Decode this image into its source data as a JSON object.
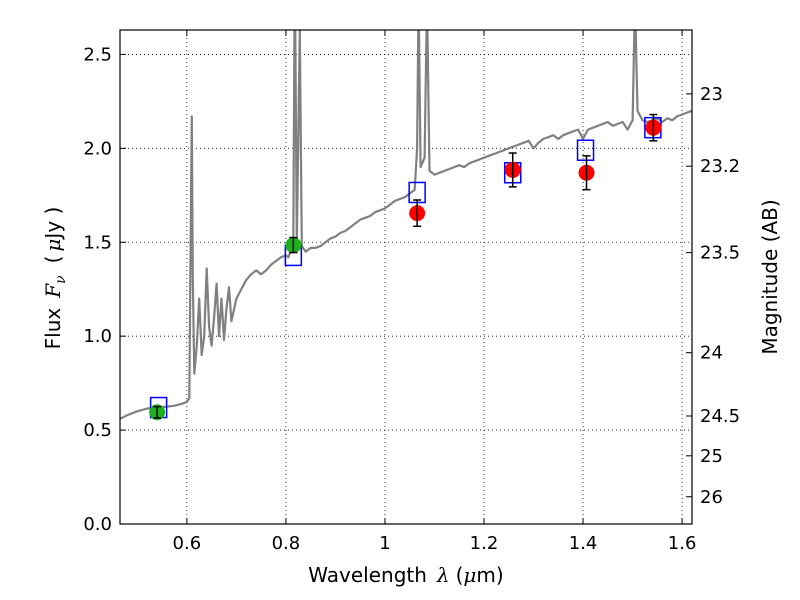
{
  "chart_data": {
    "type": "scatter",
    "xlabel_text": "Wavelength",
    "xlabel_math": "λ",
    "xlabel_unit_open": "(",
    "xlabel_unit_mu": "μ",
    "xlabel_unit_rest": "m)",
    "ylabel_text": "Flux",
    "ylabel_math": "F",
    "ylabel_sub": "ν",
    "ylabel_unit_open": "(",
    "ylabel_unit_mu": "μ",
    "ylabel_unit_rest": "Jy )",
    "ylabel_right": "Magnitude (AB)",
    "xlim": [
      0.465,
      1.62
    ],
    "ylim": [
      0.0,
      2.63
    ],
    "xticks": [
      0.6,
      0.8,
      1.0,
      1.2,
      1.4,
      1.6
    ],
    "xtick_labels": [
      "0.6",
      "0.8",
      "1",
      "1.2",
      "1.4",
      "1.6"
    ],
    "yticks": [
      0.0,
      0.5,
      1.0,
      1.5,
      2.0,
      2.5
    ],
    "ytick_labels": [
      "0.0",
      "0.5",
      "1.0",
      "1.5",
      "2.0",
      "2.5"
    ],
    "right_ticks": [
      {
        "label": "23",
        "flux": 2.29
      },
      {
        "label": "23.2",
        "flux": 1.905
      },
      {
        "label": "23.5",
        "flux": 1.445
      },
      {
        "label": "24",
        "flux": 0.912
      },
      {
        "label": "24.5",
        "flux": 0.575
      },
      {
        "label": "25",
        "flux": 0.363
      },
      {
        "label": "26",
        "flux": 0.145
      }
    ],
    "grid": true,
    "colors": {
      "spectrum": "#808080",
      "green": "#1fb01f",
      "red": "#ff0000",
      "model": "#0000ff",
      "errorbar": "#000000"
    },
    "spectrum": [
      [
        0.465,
        0.56
      ],
      [
        0.48,
        0.58
      ],
      [
        0.5,
        0.6
      ],
      [
        0.52,
        0.615
      ],
      [
        0.54,
        0.62
      ],
      [
        0.56,
        0.625
      ],
      [
        0.575,
        0.63
      ],
      [
        0.59,
        0.64
      ],
      [
        0.6,
        0.65
      ],
      [
        0.605,
        0.67
      ],
      [
        0.608,
        1.6
      ],
      [
        0.61,
        2.17
      ],
      [
        0.612,
        1.3
      ],
      [
        0.615,
        0.8
      ],
      [
        0.62,
        0.95
      ],
      [
        0.625,
        1.2
      ],
      [
        0.63,
        0.9
      ],
      [
        0.635,
        1.0
      ],
      [
        0.64,
        1.36
      ],
      [
        0.645,
        1.05
      ],
      [
        0.65,
        0.95
      ],
      [
        0.655,
        1.1
      ],
      [
        0.66,
        1.28
      ],
      [
        0.665,
        1.0
      ],
      [
        0.67,
        1.2
      ],
      [
        0.675,
        0.98
      ],
      [
        0.68,
        1.15
      ],
      [
        0.685,
        1.26
      ],
      [
        0.69,
        1.08
      ],
      [
        0.7,
        1.2
      ],
      [
        0.71,
        1.25
      ],
      [
        0.72,
        1.3
      ],
      [
        0.73,
        1.33
      ],
      [
        0.74,
        1.35
      ],
      [
        0.75,
        1.33
      ],
      [
        0.76,
        1.35
      ],
      [
        0.77,
        1.38
      ],
      [
        0.78,
        1.4
      ],
      [
        0.79,
        1.42
      ],
      [
        0.8,
        1.43
      ],
      [
        0.805,
        1.42
      ],
      [
        0.81,
        1.46
      ],
      [
        0.815,
        1.5
      ],
      [
        0.818,
        3.0
      ],
      [
        0.822,
        1.5
      ],
      [
        0.828,
        2.63
      ],
      [
        0.832,
        1.48
      ],
      [
        0.84,
        1.45
      ],
      [
        0.85,
        1.47
      ],
      [
        0.86,
        1.47
      ],
      [
        0.87,
        1.48
      ],
      [
        0.88,
        1.5
      ],
      [
        0.89,
        1.52
      ],
      [
        0.9,
        1.53
      ],
      [
        0.91,
        1.55
      ],
      [
        0.92,
        1.56
      ],
      [
        0.93,
        1.58
      ],
      [
        0.94,
        1.6
      ],
      [
        0.95,
        1.62
      ],
      [
        0.96,
        1.63
      ],
      [
        0.97,
        1.64
      ],
      [
        0.98,
        1.66
      ],
      [
        0.99,
        1.67
      ],
      [
        1.0,
        1.68
      ],
      [
        1.01,
        1.7
      ],
      [
        1.02,
        1.72
      ],
      [
        1.03,
        1.73
      ],
      [
        1.04,
        1.74
      ],
      [
        1.05,
        1.76
      ],
      [
        1.06,
        1.78
      ],
      [
        1.065,
        2.0
      ],
      [
        1.068,
        2.8
      ],
      [
        1.072,
        1.9
      ],
      [
        1.08,
        1.95
      ],
      [
        1.085,
        2.8
      ],
      [
        1.09,
        1.88
      ],
      [
        1.1,
        1.86
      ],
      [
        1.11,
        1.87
      ],
      [
        1.12,
        1.88
      ],
      [
        1.13,
        1.89
      ],
      [
        1.14,
        1.9
      ],
      [
        1.15,
        1.91
      ],
      [
        1.16,
        1.9
      ],
      [
        1.17,
        1.92
      ],
      [
        1.18,
        1.93
      ],
      [
        1.19,
        1.94
      ],
      [
        1.2,
        1.95
      ],
      [
        1.21,
        1.96
      ],
      [
        1.22,
        1.97
      ],
      [
        1.23,
        1.98
      ],
      [
        1.24,
        1.99
      ],
      [
        1.25,
        2.0
      ],
      [
        1.26,
        2.01
      ],
      [
        1.27,
        2.02
      ],
      [
        1.28,
        2.03
      ],
      [
        1.29,
        2.04
      ],
      [
        1.3,
        2.0
      ],
      [
        1.31,
        2.03
      ],
      [
        1.32,
        2.05
      ],
      [
        1.33,
        2.06
      ],
      [
        1.34,
        2.07
      ],
      [
        1.35,
        2.05
      ],
      [
        1.36,
        2.07
      ],
      [
        1.37,
        2.08
      ],
      [
        1.38,
        2.09
      ],
      [
        1.39,
        2.1
      ],
      [
        1.4,
        2.05
      ],
      [
        1.41,
        2.1
      ],
      [
        1.42,
        2.11
      ],
      [
        1.43,
        2.12
      ],
      [
        1.44,
        2.13
      ],
      [
        1.45,
        2.14
      ],
      [
        1.46,
        2.12
      ],
      [
        1.47,
        2.13
      ],
      [
        1.48,
        2.14
      ],
      [
        1.49,
        2.1
      ],
      [
        1.5,
        2.15
      ],
      [
        1.505,
        2.8
      ],
      [
        1.51,
        2.2
      ],
      [
        1.52,
        2.15
      ],
      [
        1.53,
        2.14
      ],
      [
        1.54,
        2.15
      ],
      [
        1.55,
        2.16
      ],
      [
        1.56,
        2.14
      ],
      [
        1.57,
        2.16
      ],
      [
        1.58,
        2.15
      ],
      [
        1.59,
        2.17
      ],
      [
        1.6,
        2.18
      ],
      [
        1.61,
        2.19
      ],
      [
        1.62,
        2.2
      ]
    ],
    "series": [
      {
        "name": "green",
        "points": [
          {
            "x": 0.54,
            "y": 0.595,
            "err": 0.03
          },
          {
            "x": 0.815,
            "y": 1.485,
            "err": 0.04
          }
        ]
      },
      {
        "name": "red",
        "points": [
          {
            "x": 1.065,
            "y": 1.655,
            "err": 0.07
          },
          {
            "x": 1.258,
            "y": 1.885,
            "err": 0.09
          },
          {
            "x": 1.407,
            "y": 1.87,
            "err": 0.09
          },
          {
            "x": 1.542,
            "y": 2.11,
            "err": 0.07
          }
        ]
      },
      {
        "name": "model",
        "points": [
          {
            "x": 0.543,
            "y": 0.62
          },
          {
            "x": 0.815,
            "y": 1.43
          },
          {
            "x": 1.065,
            "y": 1.765
          },
          {
            "x": 1.258,
            "y": 1.87
          },
          {
            "x": 1.405,
            "y": 1.99
          },
          {
            "x": 1.541,
            "y": 2.11
          }
        ]
      }
    ]
  }
}
